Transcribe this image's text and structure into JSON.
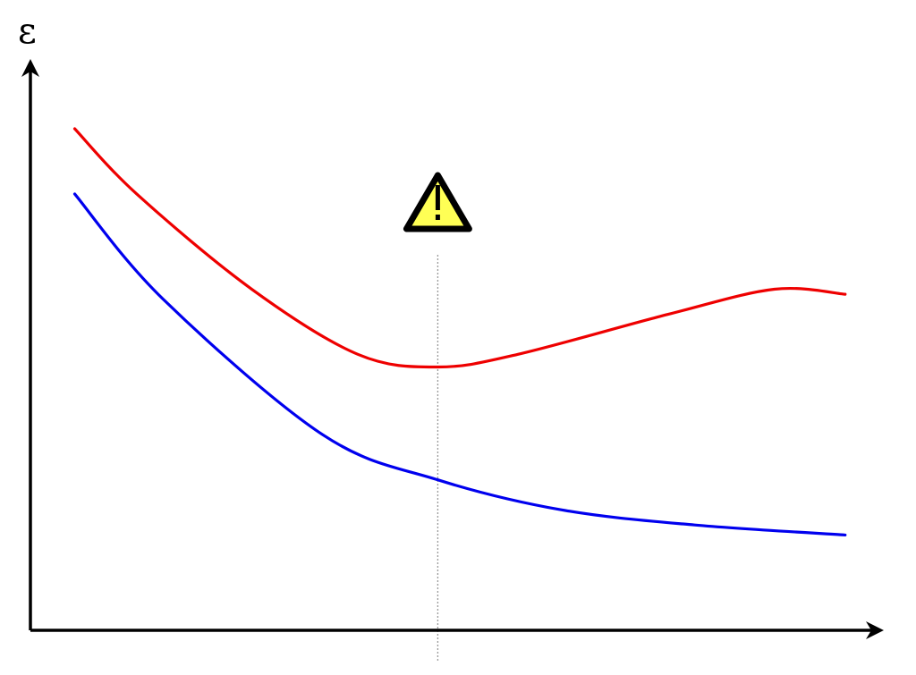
{
  "chart_data": {
    "type": "line",
    "title": "",
    "xlabel": "",
    "ylabel": "ε",
    "grid": false,
    "legend": "none",
    "series": [
      {
        "color": "#ee0000",
        "points": [
          [
            0.05,
            1.0
          ],
          [
            0.12,
            0.87
          ],
          [
            0.25,
            0.68
          ],
          [
            0.37,
            0.55
          ],
          [
            0.46,
            0.525
          ],
          [
            0.55,
            0.55
          ],
          [
            0.72,
            0.63
          ],
          [
            0.84,
            0.68
          ],
          [
            0.92,
            0.67
          ]
        ]
      },
      {
        "color": "#0000ee",
        "points": [
          [
            0.05,
            0.87
          ],
          [
            0.15,
            0.66
          ],
          [
            0.33,
            0.39
          ],
          [
            0.46,
            0.3
          ],
          [
            0.6,
            0.24
          ],
          [
            0.75,
            0.21
          ],
          [
            0.92,
            0.19
          ]
        ]
      }
    ],
    "marker": {
      "x": 0.46,
      "icon": "warning-icon",
      "line_color": "#999999",
      "icon_fill": "#ffff55",
      "icon_stroke": "#000000"
    }
  }
}
